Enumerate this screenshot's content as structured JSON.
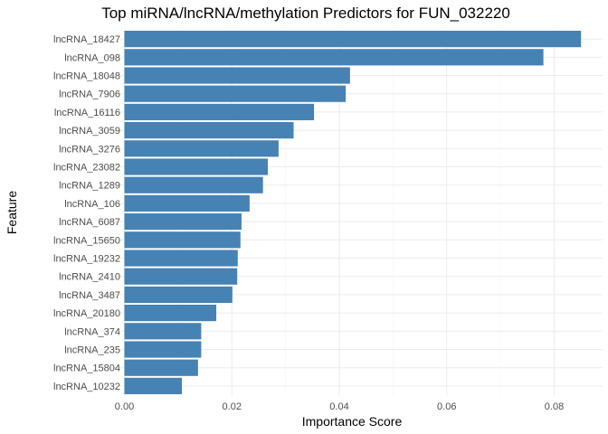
{
  "chart_data": {
    "type": "bar",
    "orientation": "horizontal",
    "title": "Top miRNA/lncRNA/methylation Predictors for FUN_032220",
    "xlabel": "Importance Score",
    "ylabel": "Feature",
    "xlim": [
      0,
      0.0875
    ],
    "x_ticks": [
      0.0,
      0.02,
      0.04,
      0.06,
      0.08
    ],
    "x_tick_labels": [
      "0.00",
      "0.02",
      "0.04",
      "0.06",
      "0.08"
    ],
    "bar_color": "#4682B4",
    "grid": true,
    "legend": "none",
    "categories": [
      "lncRNA_18427",
      "lncRNA_098",
      "lncRNA_18048",
      "lncRNA_7906",
      "lncRNA_16116",
      "lncRNA_3059",
      "lncRNA_3276",
      "lncRNA_23082",
      "lncRNA_1289",
      "lncRNA_106",
      "lncRNA_6087",
      "lncRNA_15650",
      "lncRNA_19232",
      "lncRNA_2410",
      "lncRNA_3487",
      "lncRNA_20180",
      "lncRNA_374",
      "lncRNA_235",
      "lncRNA_15804",
      "lncRNA_10232"
    ],
    "values": [
      0.085,
      0.078,
      0.042,
      0.0412,
      0.0353,
      0.0315,
      0.0287,
      0.0267,
      0.0258,
      0.0233,
      0.0218,
      0.0216,
      0.0211,
      0.021,
      0.0201,
      0.0171,
      0.0143,
      0.0143,
      0.0137,
      0.0107
    ]
  }
}
